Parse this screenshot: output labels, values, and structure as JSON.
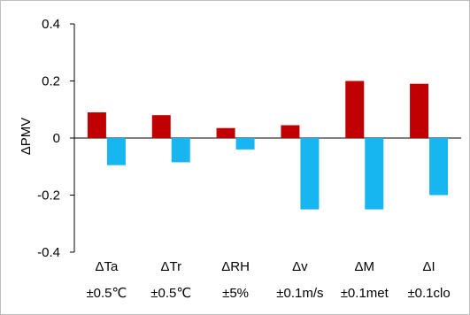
{
  "chart_data": {
    "type": "bar",
    "title": "",
    "xlabel": "",
    "ylabel": "ΔPMV",
    "ylim": [
      -0.4,
      0.4
    ],
    "yticks": [
      0.4,
      0.2,
      0,
      -0.2,
      -0.4
    ],
    "ytick_labels": [
      "0.4",
      "0.2",
      "0",
      "-0.2",
      "-0.4"
    ],
    "grid": false,
    "legend": "none",
    "categories": [
      {
        "top": "ΔTa",
        "bottom": "±0.5℃"
      },
      {
        "top": "ΔTr",
        "bottom": "±0.5℃"
      },
      {
        "top": "ΔRH",
        "bottom": "±5%"
      },
      {
        "top": "Δv",
        "bottom": "±0.1m/s"
      },
      {
        "top": "ΔM",
        "bottom": "±0.1met"
      },
      {
        "top": "ΔI",
        "bottom": "±0.1clo"
      }
    ],
    "series": [
      {
        "color": "#c00000",
        "values": [
          0.09,
          0.08,
          0.035,
          0.045,
          0.2,
          0.19
        ]
      },
      {
        "color": "#17b6f0",
        "values": [
          -0.095,
          -0.085,
          -0.04,
          -0.25,
          -0.25,
          -0.2
        ]
      }
    ]
  }
}
